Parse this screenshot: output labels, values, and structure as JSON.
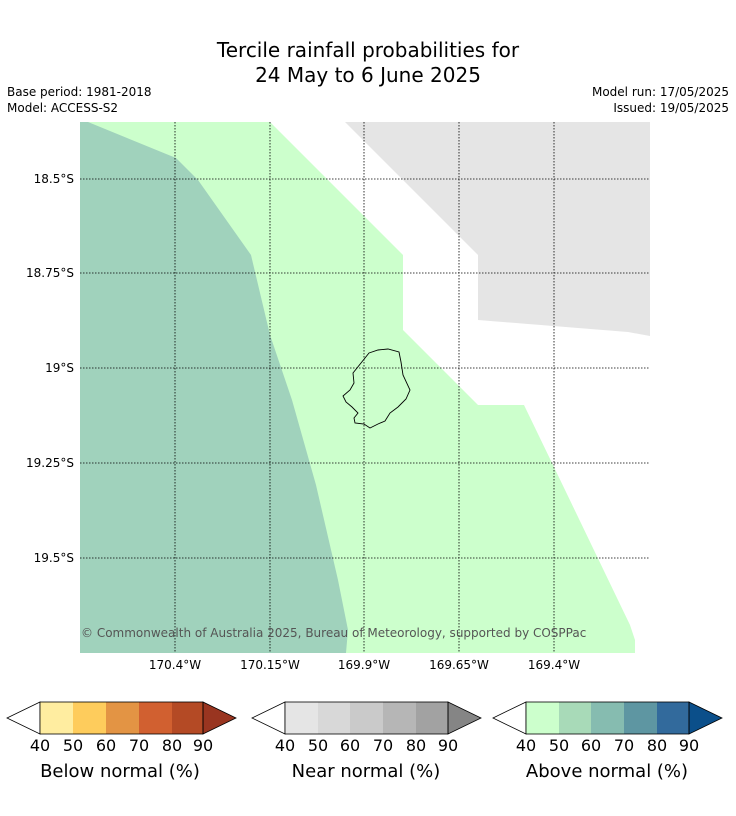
{
  "title": {
    "line1": "Tercile rainfall probabilities for",
    "line2": "24 May to 6 June 2025"
  },
  "meta": {
    "base_period": "Base period: 1981-2018",
    "model": "Model: ACCESS-S2",
    "model_run": "Model run: 17/05/2025",
    "issued": "Issued: 19/05/2025"
  },
  "map": {
    "lat_labels": [
      "18.5°S",
      "18.75°S",
      "19°S",
      "19.25°S",
      "19.5°S"
    ],
    "lon_labels": [
      "170.4°W",
      "170.15°W",
      "169.9°W",
      "169.65°W",
      "169.4°W"
    ],
    "copyright": "© Commonwealth of Australia 2025, Bureau of Meteorology, supported by COSPPac",
    "colors": {
      "above_50": "#ccffcc",
      "above_60": "#a0d2bc",
      "near_40": "#e5e5e5",
      "land_outline": "#000000"
    }
  },
  "legends": [
    {
      "title": "Below normal (%)",
      "ticks": [
        "40",
        "50",
        "60",
        "70",
        "80",
        "90"
      ],
      "colors": [
        "#ffeda0",
        "#fecc5c",
        "#e39444",
        "#d16030",
        "#b44a25",
        "#993520"
      ]
    },
    {
      "title": "Near normal (%)",
      "ticks": [
        "40",
        "50",
        "60",
        "70",
        "80",
        "90"
      ],
      "colors": [
        "#e5e5e5",
        "#d8d8d8",
        "#cacaca",
        "#b6b6b6",
        "#a2a2a2",
        "#858585"
      ]
    },
    {
      "title": "Above normal (%)",
      "ticks": [
        "40",
        "50",
        "60",
        "70",
        "80",
        "90"
      ],
      "colors": [
        "#ccffcc",
        "#a8dab8",
        "#86bcb0",
        "#5e96a2",
        "#326a9c",
        "#0b4f8a"
      ]
    }
  ]
}
